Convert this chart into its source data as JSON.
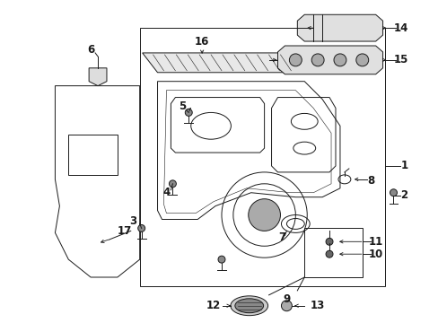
{
  "background": "#ffffff",
  "fig_width": 4.89,
  "fig_height": 3.6,
  "dpi": 100,
  "line_color": "#1a1a1a",
  "lw": 0.7,
  "font_size": 7.5
}
